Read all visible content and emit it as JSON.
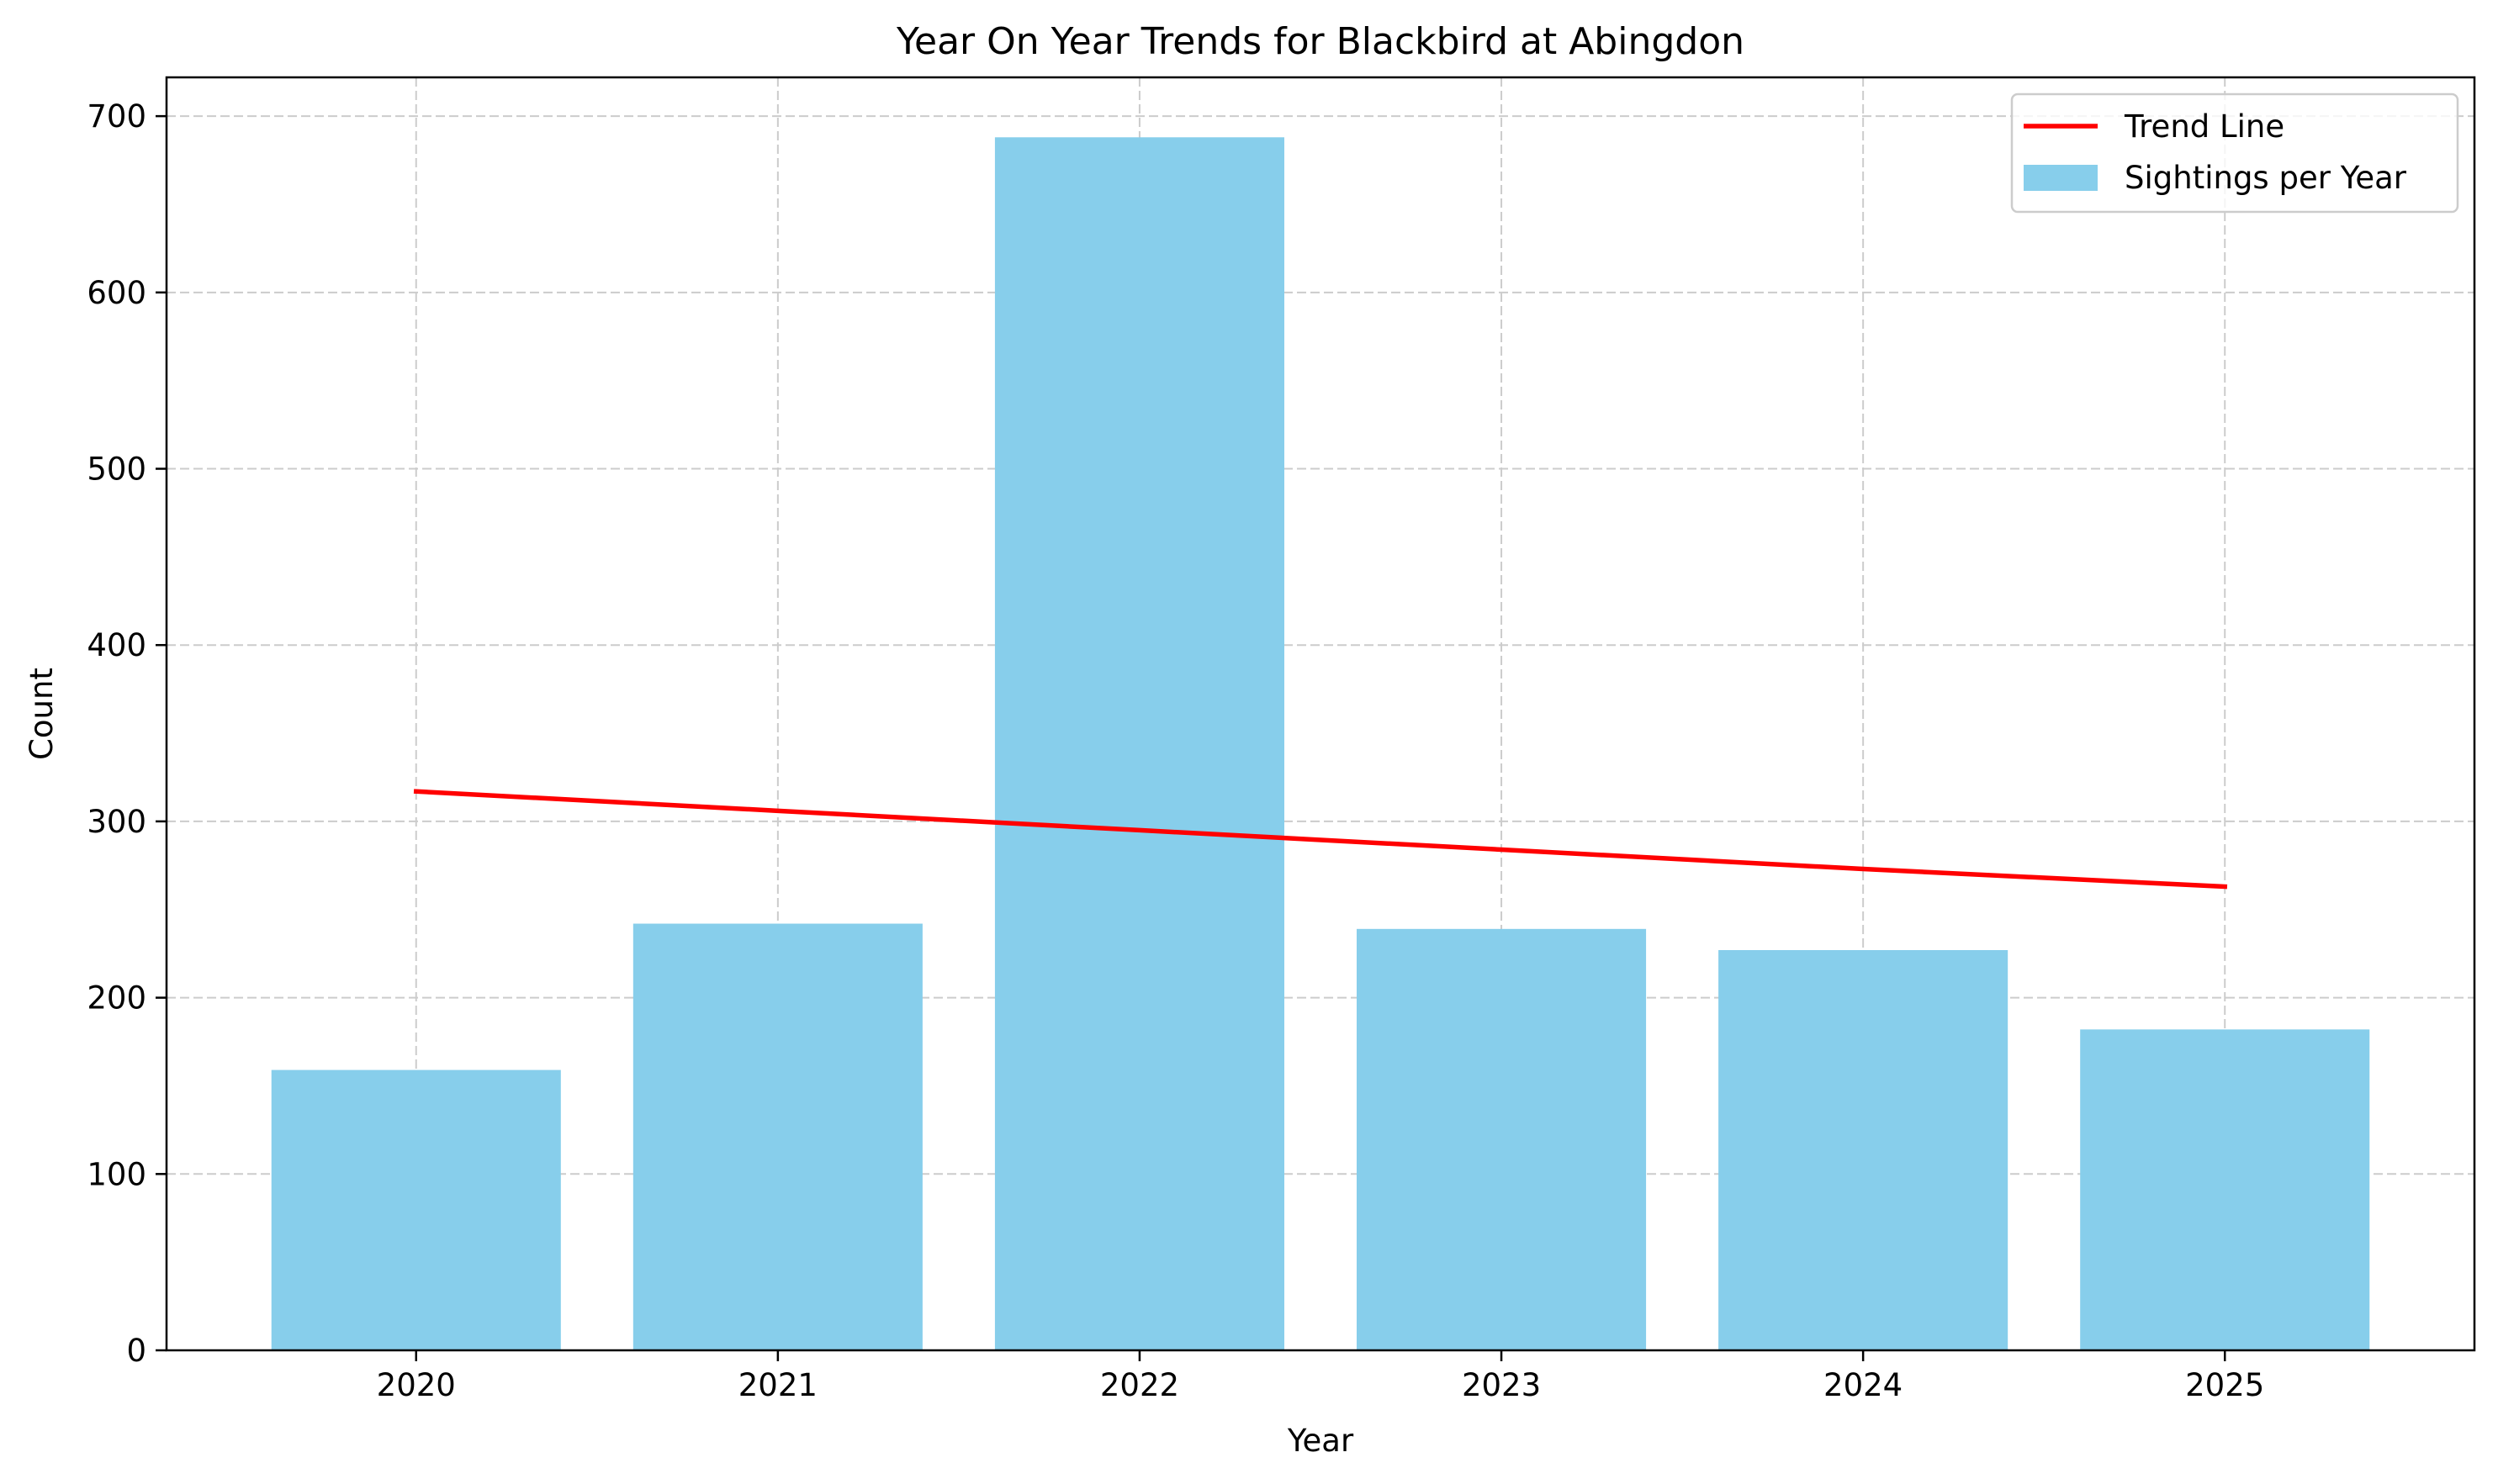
{
  "chart_data": {
    "type": "bar",
    "title": "Year On Year Trends for Blackbird at Abingdon",
    "xlabel": "Year",
    "ylabel": "Count",
    "categories": [
      "2020",
      "2021",
      "2022",
      "2023",
      "2024",
      "2025"
    ],
    "ylim": [
      0,
      722
    ],
    "yticks": [
      0,
      100,
      200,
      300,
      400,
      500,
      600,
      700
    ],
    "grid": true,
    "legend_position": "top-right",
    "series": [
      {
        "name": "Sightings per Year",
        "kind": "bar",
        "color": "#87CEEB",
        "values": [
          159,
          242,
          688,
          239,
          227,
          182
        ]
      },
      {
        "name": "Trend Line",
        "kind": "line",
        "color": "#ff0000",
        "values": [
          317,
          306,
          295,
          284,
          273,
          263
        ]
      }
    ]
  }
}
